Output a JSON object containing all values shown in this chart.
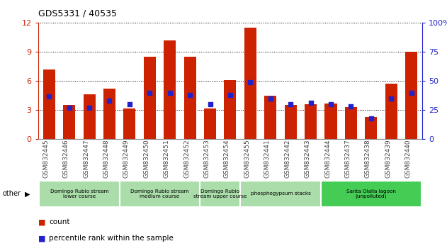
{
  "title": "GDS5331 / 40535",
  "samples": [
    "GSM832445",
    "GSM832446",
    "GSM832447",
    "GSM832448",
    "GSM832449",
    "GSM832450",
    "GSM832451",
    "GSM832452",
    "GSM832453",
    "GSM832454",
    "GSM832455",
    "GSM832441",
    "GSM832442",
    "GSM832443",
    "GSM832444",
    "GSM832437",
    "GSM832438",
    "GSM832439",
    "GSM832440"
  ],
  "counts": [
    7.2,
    3.5,
    4.6,
    5.2,
    3.2,
    8.5,
    10.2,
    8.5,
    3.2,
    6.1,
    11.5,
    4.5,
    3.5,
    3.6,
    3.7,
    3.3,
    2.3,
    5.7,
    9.0
  ],
  "percentile_ranks_pct": [
    37,
    27,
    27,
    33,
    30,
    40,
    40,
    38,
    30,
    38,
    49,
    35,
    30,
    31,
    30,
    28,
    18,
    35,
    40
  ],
  "bar_color": "#cc2200",
  "dot_color": "#2222cc",
  "ylim_left": [
    0,
    12
  ],
  "ylim_right": [
    0,
    100
  ],
  "yticks_left": [
    0,
    3,
    6,
    9,
    12
  ],
  "yticks_right": [
    0,
    25,
    50,
    75,
    100
  ],
  "group_data": [
    {
      "label": "Domingo Rubio stream\nlower course",
      "start": 0,
      "end": 4,
      "color": "#aaddaa"
    },
    {
      "label": "Domingo Rubio stream\nmedium course",
      "start": 4,
      "end": 8,
      "color": "#aaddaa"
    },
    {
      "label": "Domingo Rubio\nstream upper course",
      "start": 8,
      "end": 10,
      "color": "#aaddaa"
    },
    {
      "label": "phosphogypsum stacks",
      "start": 10,
      "end": 14,
      "color": "#aaddaa"
    },
    {
      "label": "Santa Olalla lagoon\n(unpolluted)",
      "start": 14,
      "end": 19,
      "color": "#44cc55"
    }
  ],
  "right_axis_color": "#2222cc",
  "left_axis_color": "#cc2200"
}
